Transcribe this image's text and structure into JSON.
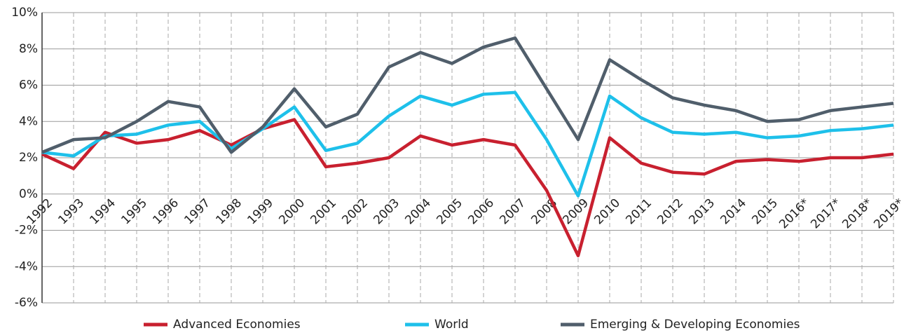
{
  "chart_data": {
    "type": "line",
    "categories": [
      "1992",
      "1993",
      "1994",
      "1995",
      "1996",
      "1997",
      "1998",
      "1999",
      "2000",
      "2001",
      "2002",
      "2003",
      "2004",
      "2005",
      "2006",
      "2007",
      "2008",
      "2009",
      "2010",
      "2011",
      "2012",
      "2013",
      "2014",
      "2015",
      "2016*",
      "2017*",
      "2018*",
      "2019*"
    ],
    "series": [
      {
        "name": "Advanced Economies",
        "color": "#c8202f",
        "values": [
          2.2,
          1.4,
          3.4,
          2.8,
          3.0,
          3.5,
          2.7,
          3.6,
          4.1,
          1.5,
          1.7,
          2.0,
          3.2,
          2.7,
          3.0,
          2.7,
          0.2,
          -3.4,
          3.1,
          1.7,
          1.2,
          1.1,
          1.8,
          1.9,
          1.8,
          2.0,
          2.0,
          2.2
        ]
      },
      {
        "name": "World",
        "color": "#1ec0ea",
        "values": [
          2.3,
          2.1,
          3.2,
          3.3,
          3.8,
          4.0,
          2.5,
          3.6,
          4.8,
          2.4,
          2.8,
          4.3,
          5.4,
          4.9,
          5.5,
          5.6,
          3.0,
          -0.1,
          5.4,
          4.2,
          3.4,
          3.3,
          3.4,
          3.1,
          3.2,
          3.5,
          3.6,
          3.8
        ]
      },
      {
        "name": "Emerging & Developing Economies",
        "color": "#505e6b",
        "values": [
          2.3,
          3.0,
          3.1,
          4.0,
          5.1,
          4.8,
          2.3,
          3.7,
          5.8,
          3.7,
          4.4,
          7.0,
          7.8,
          7.2,
          8.1,
          8.6,
          5.8,
          3.0,
          7.4,
          6.3,
          5.3,
          4.9,
          4.6,
          4.0,
          4.1,
          4.6,
          4.8,
          5.0
        ]
      }
    ],
    "ylim": [
      -6,
      10
    ],
    "yticks": [
      {
        "value": -6,
        "label": "-6%"
      },
      {
        "value": -4,
        "label": "-4%"
      },
      {
        "value": -2,
        "label": "-2%"
      },
      {
        "value": 0,
        "label": "0%"
      },
      {
        "value": 2,
        "label": "2%"
      },
      {
        "value": 4,
        "label": "4%"
      },
      {
        "value": 6,
        "label": "6%"
      },
      {
        "value": 8,
        "label": "8%"
      },
      {
        "value": 10,
        "label": "10%"
      }
    ],
    "grid": true,
    "legend": "bottom"
  }
}
